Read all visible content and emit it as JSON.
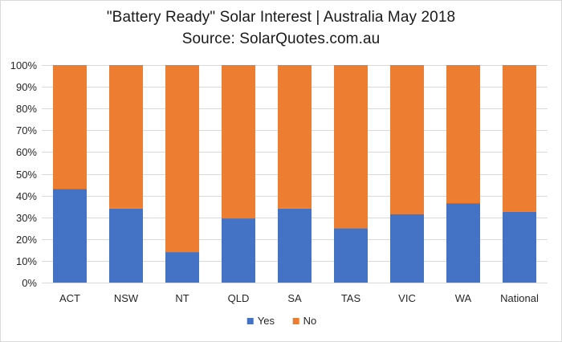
{
  "chart_data": {
    "type": "bar",
    "stacked": true,
    "title": "\"Battery Ready\" Solar Interest  |  Australia May 2018",
    "subtitle": "Source: SolarQuotes.com.au",
    "xlabel": "",
    "ylabel": "",
    "categories": [
      "ACT",
      "NSW",
      "NT",
      "QLD",
      "SA",
      "TAS",
      "VIC",
      "WA",
      "National"
    ],
    "series": [
      {
        "name": "Yes",
        "color": "#4472c4",
        "values": [
          43,
          34,
          14,
          29.5,
          34,
          25,
          31.5,
          36.5,
          32.5
        ]
      },
      {
        "name": "No",
        "color": "#ed7d31",
        "values": [
          57,
          66,
          86,
          70.5,
          66,
          75,
          68.5,
          63.5,
          67.5
        ]
      }
    ],
    "ylim": [
      0,
      100
    ],
    "yticks": [
      "0%",
      "10%",
      "20%",
      "30%",
      "40%",
      "50%",
      "60%",
      "70%",
      "80%",
      "90%",
      "100%"
    ],
    "grid": true,
    "gridColor": "#d9d9d9",
    "legend_position": "bottom"
  }
}
